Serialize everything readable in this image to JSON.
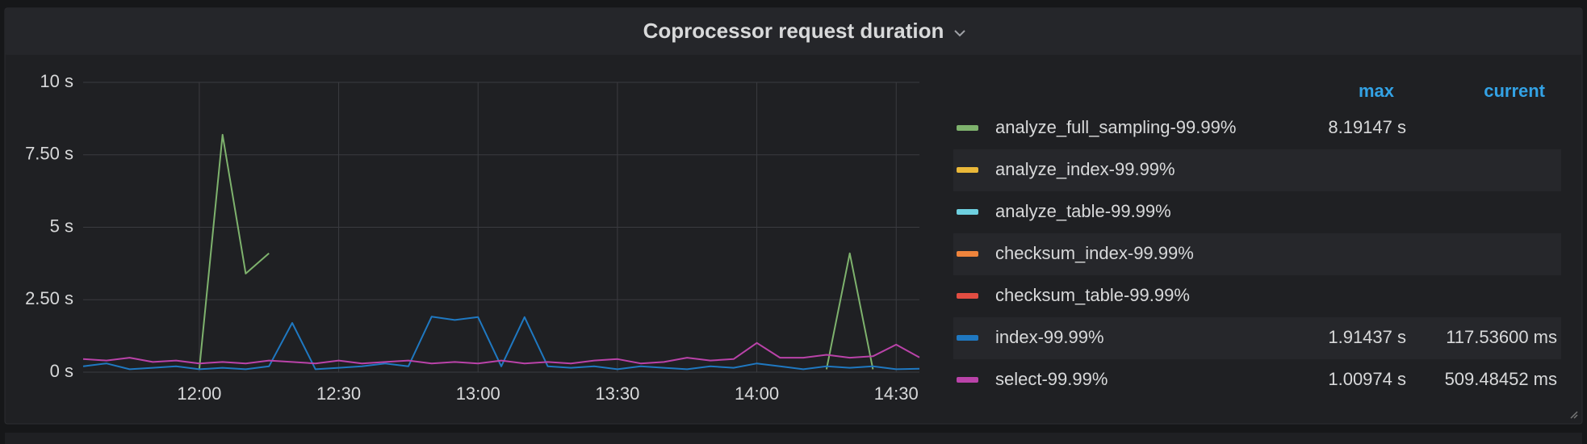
{
  "chart_data": {
    "type": "line",
    "title": "Coprocessor request duration",
    "x": [
      "11:35",
      "11:40",
      "11:45",
      "11:50",
      "11:55",
      "12:00",
      "12:05",
      "12:10",
      "12:15",
      "12:20",
      "12:25",
      "12:30",
      "12:35",
      "12:40",
      "12:45",
      "12:50",
      "12:55",
      "13:00",
      "13:05",
      "13:10",
      "13:15",
      "13:20",
      "13:25",
      "13:30",
      "13:35",
      "13:40",
      "13:45",
      "13:50",
      "13:55",
      "14:00",
      "14:05",
      "14:10",
      "14:15",
      "14:20",
      "14:25",
      "14:30",
      "14:35"
    ],
    "xlim": [
      "11:35",
      "14:35"
    ],
    "xticks": [
      "12:00",
      "12:30",
      "13:00",
      "13:30",
      "14:00",
      "14:30"
    ],
    "ylim": [
      0,
      10
    ],
    "yticks": [
      {
        "value": 0,
        "label": "0 s"
      },
      {
        "value": 2.5,
        "label": "2.50 s"
      },
      {
        "value": 5,
        "label": "5 s"
      },
      {
        "value": 7.5,
        "label": "7.50 s"
      },
      {
        "value": 10,
        "label": "10 s"
      }
    ],
    "grid": true,
    "legend_columns": [
      "max",
      "current"
    ],
    "series": [
      {
        "name": "analyze_full_sampling-99.99%",
        "color": "#7eb26d",
        "max": "8.19147 s",
        "values": [
          null,
          null,
          null,
          null,
          null,
          0.1,
          8.19147,
          3.4,
          4.1,
          null,
          null,
          null,
          null,
          null,
          null,
          null,
          null,
          null,
          null,
          null,
          null,
          null,
          null,
          null,
          null,
          null,
          null,
          null,
          null,
          null,
          null,
          null,
          0.1,
          4.1,
          0.1,
          null,
          null
        ]
      },
      {
        "name": "analyze_index-99.99%",
        "color": "#eab839",
        "values": [
          null,
          null,
          null,
          null,
          null,
          null,
          null,
          null,
          null,
          null,
          null,
          null,
          null,
          null,
          null,
          null,
          null,
          null,
          null,
          null,
          null,
          null,
          null,
          null,
          null,
          null,
          null,
          null,
          null,
          null,
          null,
          null,
          null,
          null,
          null,
          null,
          null
        ]
      },
      {
        "name": "analyze_table-99.99%",
        "color": "#6ed0e0",
        "values": [
          null,
          null,
          null,
          null,
          null,
          null,
          null,
          null,
          null,
          null,
          null,
          null,
          null,
          null,
          null,
          null,
          null,
          null,
          null,
          null,
          null,
          null,
          null,
          null,
          null,
          null,
          null,
          null,
          null,
          null,
          null,
          null,
          null,
          null,
          null,
          null,
          null
        ]
      },
      {
        "name": "checksum_index-99.99%",
        "color": "#ef843c",
        "values": [
          null,
          null,
          null,
          null,
          null,
          null,
          null,
          null,
          null,
          null,
          null,
          null,
          null,
          null,
          null,
          null,
          null,
          null,
          null,
          null,
          null,
          null,
          null,
          null,
          null,
          null,
          null,
          null,
          null,
          null,
          null,
          null,
          null,
          null,
          null,
          null,
          null
        ]
      },
      {
        "name": "checksum_table-99.99%",
        "color": "#e24d42",
        "values": [
          null,
          null,
          null,
          null,
          null,
          null,
          null,
          null,
          null,
          null,
          null,
          null,
          null,
          null,
          null,
          null,
          null,
          null,
          null,
          null,
          null,
          null,
          null,
          null,
          null,
          null,
          null,
          null,
          null,
          null,
          null,
          null,
          null,
          null,
          null,
          null,
          null
        ]
      },
      {
        "name": "index-99.99%",
        "color": "#1f78c1",
        "max": "1.91437 s",
        "current": "117.53600 ms",
        "values": [
          0.2,
          0.3,
          0.1,
          0.15,
          0.2,
          0.1,
          0.15,
          0.1,
          0.2,
          1.7,
          0.1,
          0.15,
          0.2,
          0.3,
          0.2,
          1.91437,
          1.8,
          1.9,
          0.2,
          1.9,
          0.2,
          0.15,
          0.2,
          0.1,
          0.2,
          0.15,
          0.1,
          0.2,
          0.15,
          0.3,
          0.2,
          0.1,
          0.2,
          0.15,
          0.2,
          0.1,
          0.117536
        ]
      },
      {
        "name": "select-99.99%",
        "color": "#ba43a9",
        "max": "1.00974 s",
        "current": "509.48452 ms",
        "values": [
          0.45,
          0.4,
          0.5,
          0.35,
          0.4,
          0.3,
          0.35,
          0.3,
          0.4,
          0.35,
          0.3,
          0.4,
          0.3,
          0.35,
          0.4,
          0.3,
          0.35,
          0.3,
          0.4,
          0.3,
          0.35,
          0.3,
          0.4,
          0.45,
          0.3,
          0.35,
          0.5,
          0.4,
          0.45,
          1.00974,
          0.5,
          0.5,
          0.6,
          0.5,
          0.55,
          0.95,
          0.509485
        ]
      }
    ]
  }
}
